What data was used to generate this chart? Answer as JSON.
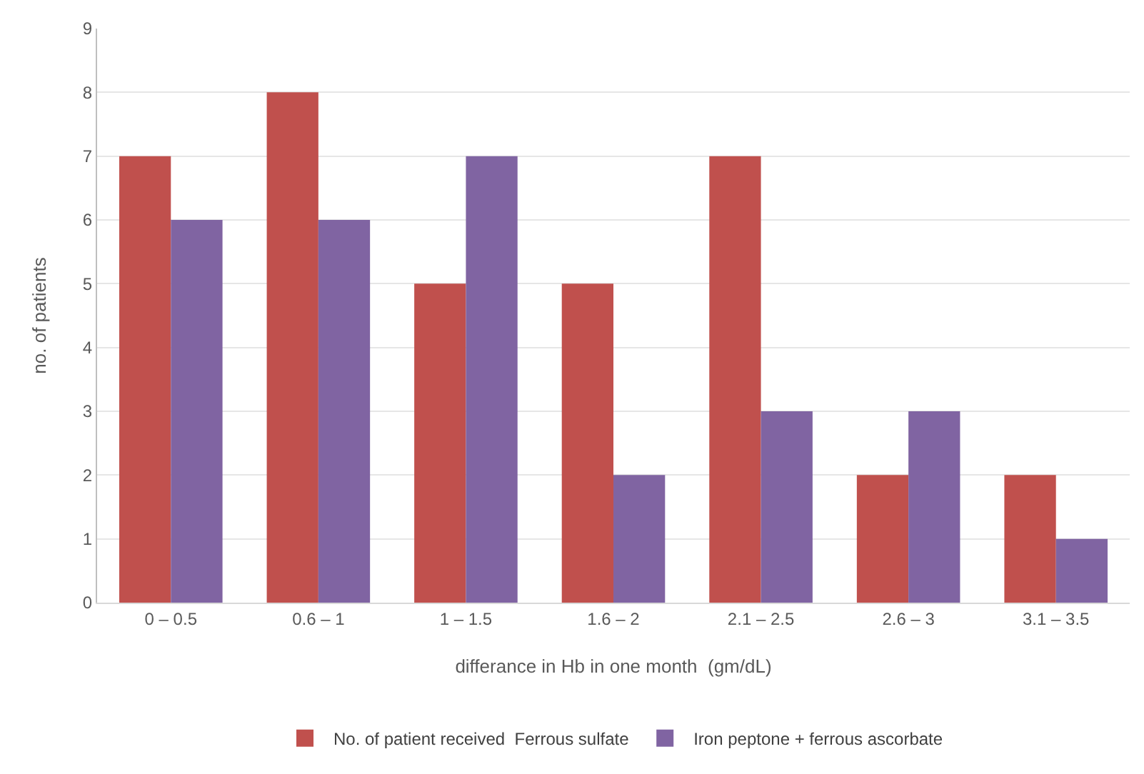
{
  "chart_data": {
    "type": "bar",
    "xlabel": "differance in Hb in one month  (gm/dL)",
    "ylabel": "no. of patients",
    "categories": [
      "0 – 0.5",
      "0.6 – 1",
      "1 – 1.5",
      "1.6 – 2",
      "2.1 – 2.5",
      "2.6 – 3",
      "3.1 – 3.5"
    ],
    "series": [
      {
        "name": "No. of patient received  Ferrous sulfate",
        "color": "#c0504d",
        "values": [
          7,
          8,
          5,
          5,
          7,
          2,
          2
        ]
      },
      {
        "name": "Iron peptone + ferrous ascorbate",
        "color": "#8064a2",
        "values": [
          6,
          6,
          7,
          2,
          3,
          3,
          1
        ]
      }
    ],
    "ylim": [
      0,
      9
    ],
    "yticks": [
      0,
      1,
      2,
      3,
      4,
      5,
      6,
      7,
      8,
      9
    ],
    "grid": "y",
    "legend": "bottom"
  }
}
